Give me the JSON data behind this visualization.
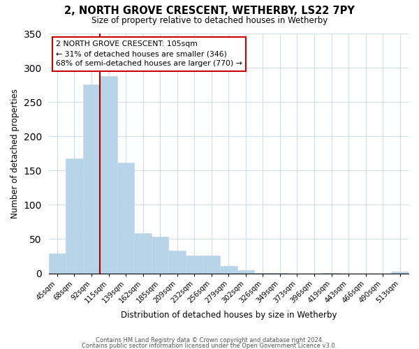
{
  "title": "2, NORTH GROVE CRESCENT, WETHERBY, LS22 7PY",
  "subtitle": "Size of property relative to detached houses in Wetherby",
  "xlabel": "Distribution of detached houses by size in Wetherby",
  "ylabel": "Number of detached properties",
  "bar_labels": [
    "45sqm",
    "68sqm",
    "92sqm",
    "115sqm",
    "139sqm",
    "162sqm",
    "185sqm",
    "209sqm",
    "232sqm",
    "256sqm",
    "279sqm",
    "302sqm",
    "326sqm",
    "349sqm",
    "373sqm",
    "396sqm",
    "419sqm",
    "443sqm",
    "466sqm",
    "490sqm",
    "513sqm"
  ],
  "bar_heights": [
    29,
    168,
    276,
    288,
    162,
    59,
    54,
    33,
    26,
    26,
    11,
    5,
    1,
    1,
    0,
    0,
    1,
    0,
    0,
    0,
    3
  ],
  "bar_color": "#b8d4e8",
  "bar_edge_color": "#c8d8e8",
  "property_line_x": 2.5,
  "property_line_color": "#aa0000",
  "annotation_title": "2 NORTH GROVE CRESCENT: 105sqm",
  "annotation_line1": "← 31% of detached houses are smaller (346)",
  "annotation_line2": "68% of semi-detached houses are larger (770) →",
  "annotation_box_color": "#ffffff",
  "annotation_box_edge": "#cc0000",
  "ylim": [
    0,
    350
  ],
  "yticks": [
    0,
    50,
    100,
    150,
    200,
    250,
    300,
    350
  ],
  "footer1": "Contains HM Land Registry data © Crown copyright and database right 2024.",
  "footer2": "Contains public sector information licensed under the Open Government Licence v3.0.",
  "background_color": "#ffffff",
  "grid_color": "#d0dce8"
}
